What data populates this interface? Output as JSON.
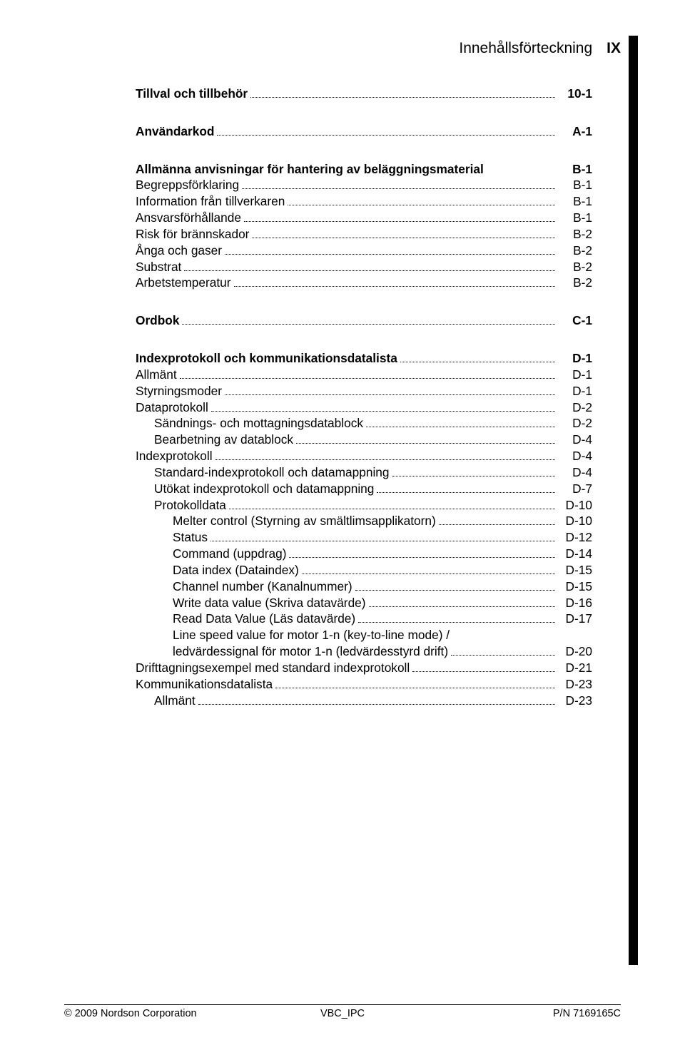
{
  "header": {
    "title": "Innehållsförteckning",
    "number": "IX"
  },
  "groups": [
    {
      "rows": [
        {
          "label": "Tillval och tillbehör",
          "page": "10-1",
          "bold": true,
          "indent": 0
        }
      ]
    },
    {
      "rows": [
        {
          "label": "Användarkod",
          "page": "A-1",
          "bold": true,
          "indent": 0
        }
      ]
    },
    {
      "rows": [
        {
          "label": "Allmänna anvisningar för hantering av beläggningsmaterial",
          "page": "B-1",
          "bold": true,
          "indent": 0,
          "nodots": true
        },
        {
          "label": "Begreppsförklaring",
          "page": "B-1",
          "bold": false,
          "indent": 0
        },
        {
          "label": "Information från tillverkaren",
          "page": "B-1",
          "bold": false,
          "indent": 0
        },
        {
          "label": "Ansvarsförhållande",
          "page": "B-1",
          "bold": false,
          "indent": 0
        },
        {
          "label": "Risk för brännskador",
          "page": "B-2",
          "bold": false,
          "indent": 0
        },
        {
          "label": "Ånga och gaser",
          "page": "B-2",
          "bold": false,
          "indent": 0
        },
        {
          "label": "Substrat",
          "page": "B-2",
          "bold": false,
          "indent": 0
        },
        {
          "label": "Arbetstemperatur",
          "page": "B-2",
          "bold": false,
          "indent": 0
        }
      ]
    },
    {
      "rows": [
        {
          "label": "Ordbok",
          "page": "C-1",
          "bold": true,
          "indent": 0
        }
      ]
    },
    {
      "rows": [
        {
          "label": "Indexprotokoll och kommunikationsdatalista",
          "page": "D-1",
          "bold": true,
          "indent": 0
        },
        {
          "label": "Allmänt",
          "page": "D-1",
          "bold": false,
          "indent": 0
        },
        {
          "label": "Styrningsmoder",
          "page": "D-1",
          "bold": false,
          "indent": 0
        },
        {
          "label": "Dataprotokoll",
          "page": "D-2",
          "bold": false,
          "indent": 0
        },
        {
          "label": "Sändnings- och mottagningsdatablock",
          "page": "D-2",
          "bold": false,
          "indent": 1
        },
        {
          "label": "Bearbetning av datablock",
          "page": "D-4",
          "bold": false,
          "indent": 1
        },
        {
          "label": "Indexprotokoll",
          "page": "D-4",
          "bold": false,
          "indent": 0
        },
        {
          "label": "Standard-indexprotokoll och datamappning",
          "page": "D-4",
          "bold": false,
          "indent": 1
        },
        {
          "label": "Utökat indexprotokoll och datamappning",
          "page": "D-7",
          "bold": false,
          "indent": 1
        },
        {
          "label": "Protokolldata",
          "page": "D-10",
          "bold": false,
          "indent": 1
        },
        {
          "label": "Melter control (Styrning av smältlimsapplikatorn)",
          "page": "D-10",
          "bold": false,
          "indent": 2
        },
        {
          "label": "Status",
          "page": "D-12",
          "bold": false,
          "indent": 2
        },
        {
          "label": "Command (uppdrag)",
          "page": "D-14",
          "bold": false,
          "indent": 2
        },
        {
          "label": "Data index (Dataindex)",
          "page": "D-15",
          "bold": false,
          "indent": 2
        },
        {
          "label": "Channel number (Kanalnummer)",
          "page": "D-15",
          "bold": false,
          "indent": 2
        },
        {
          "label": "Write data value (Skriva datavärde)",
          "page": "D-16",
          "bold": false,
          "indent": 2
        },
        {
          "label": "Read Data Value (Läs datavärde)",
          "page": "D-17",
          "bold": false,
          "indent": 2
        },
        {
          "label": "Line speed value for motor 1-n (key-to-line mode) /",
          "page": "",
          "bold": false,
          "indent": 2,
          "noLine": true
        },
        {
          "label": "ledvärdessignal för motor 1-n (ledvärdesstyrd drift)",
          "page": "D-20",
          "bold": false,
          "indent": 2
        },
        {
          "label": "Drifttagningsexempel med standard indexprotokoll",
          "page": "D-21",
          "bold": false,
          "indent": 0
        },
        {
          "label": "Kommunikationsdatalista",
          "page": "D-23",
          "bold": false,
          "indent": 0
        },
        {
          "label": "Allmänt",
          "page": "D-23",
          "bold": false,
          "indent": 1
        }
      ]
    }
  ],
  "footer": {
    "left": "© 2009 Nordson Corporation",
    "center": "VBC_IPC",
    "right": "P/N 7169165C"
  }
}
